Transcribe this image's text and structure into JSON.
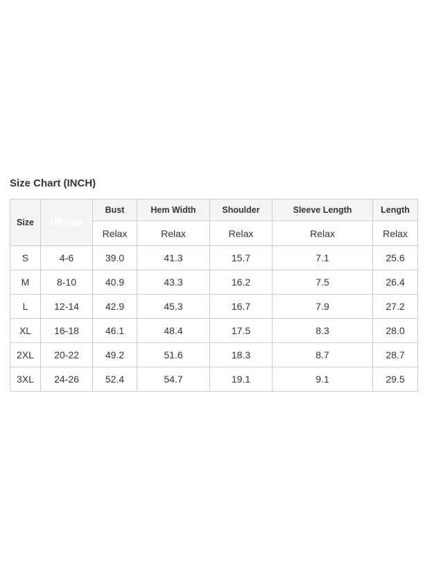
{
  "page": {
    "title": "Size Chart (INCH)"
  },
  "chart_data": {
    "type": "table",
    "title": "Size Chart (INCH)",
    "unit": "INCH",
    "columns": [
      {
        "label": "Size",
        "sub": "",
        "highlighted": false
      },
      {
        "label": "US Size",
        "sub": "",
        "highlighted": true
      },
      {
        "label": "Bust",
        "sub": "Relax",
        "highlighted": false
      },
      {
        "label": "Hem Width",
        "sub": "Relax",
        "highlighted": false
      },
      {
        "label": "Shoulder",
        "sub": "Relax",
        "highlighted": false
      },
      {
        "label": "Sleeve Length",
        "sub": "Relax",
        "highlighted": false
      },
      {
        "label": "Length",
        "sub": "Relax",
        "highlighted": false
      }
    ],
    "rows": [
      [
        "S",
        "4-6",
        "39.0",
        "41.3",
        "15.7",
        "7.1",
        "25.6"
      ],
      [
        "M",
        "8-10",
        "40.9",
        "43.3",
        "16.2",
        "7.5",
        "26.4"
      ],
      [
        "L",
        "12-14",
        "42.9",
        "45.3",
        "16.7",
        "7.9",
        "27.2"
      ],
      [
        "XL",
        "16-18",
        "46.1",
        "48.4",
        "17.5",
        "8.3",
        "28.0"
      ],
      [
        "2XL",
        "20-22",
        "49.2",
        "51.6",
        "18.3",
        "8.7",
        "28.7"
      ],
      [
        "3XL",
        "24-26",
        "52.4",
        "54.7",
        "19.1",
        "9.1",
        "29.5"
      ]
    ]
  },
  "colors": {
    "highlight_header_bg": "#434343",
    "highlight_header_text": "#ffffff",
    "header_bg": "#f5f5f5",
    "border": "#cccccc",
    "text": "#333333"
  }
}
